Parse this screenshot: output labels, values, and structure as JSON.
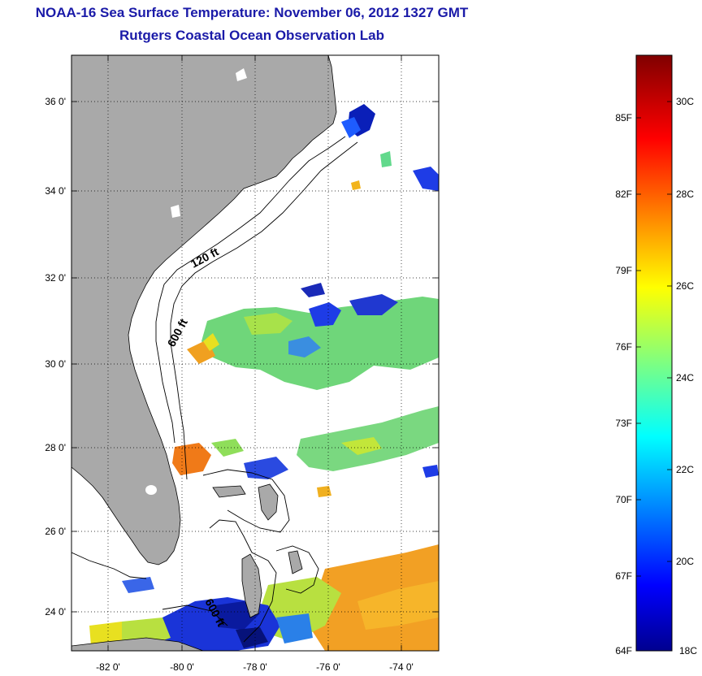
{
  "title_line1": "NOAA-16 Sea Surface Temperature:  November 06, 2012 1327 GMT",
  "title_line2": "Rutgers Coastal Ocean Observation Lab",
  "map": {
    "lat_range": [
      23,
      37
    ],
    "lon_range": [
      -83,
      -73
    ],
    "lat_ticks": [
      "24 0'",
      "26 0'",
      "28 0'",
      "30 0'",
      "32 0'",
      "34 0'",
      "36 0'"
    ],
    "lon_ticks": [
      "-82 0'",
      "-80 0'",
      "-78 0'",
      "-76 0'",
      "-74 0'"
    ],
    "contour_labels": [
      "120 ft",
      "600 ft",
      "600 ft"
    ],
    "land_color": "#a9a9a9",
    "grid": "dotted"
  },
  "colorbar": {
    "fahrenheit_labels": [
      "85F",
      "82F",
      "79F",
      "76F",
      "73F",
      "70F",
      "67F",
      "64F"
    ],
    "celsius_labels": [
      "30C",
      "28C",
      "26C",
      "24C",
      "22C",
      "20C",
      "18C"
    ],
    "range_c": [
      18,
      31.5
    ],
    "colormap": "jet"
  }
}
